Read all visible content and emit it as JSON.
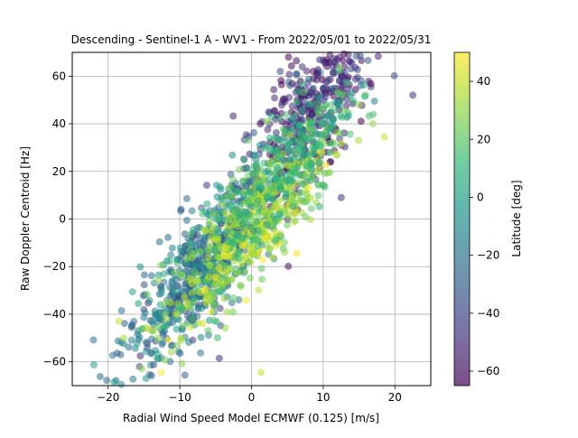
{
  "chart_data": {
    "type": "scatter",
    "title": "Descending - Sentinel-1 A - WV1 - From 2022/05/01 to 2022/05/31",
    "xlabel": "Radial Wind Speed Model ECMWF (0.125) [m/s]",
    "ylabel": "Raw Doppler Centroid [Hz]",
    "xlim": [
      -25,
      25
    ],
    "ylim": [
      -70,
      70
    ],
    "xticks": [
      -20,
      -10,
      0,
      10,
      20
    ],
    "yticks": [
      -60,
      -40,
      -20,
      0,
      20,
      40,
      60
    ],
    "grid": true,
    "point_alpha": 0.55,
    "colormap": "viridis",
    "colorbar": {
      "label": "Latitude [deg]",
      "range": [
        -65,
        50
      ],
      "ticks": [
        -60,
        -40,
        -20,
        0,
        20,
        40
      ],
      "gradient": [
        "#440154",
        "#482878",
        "#3e4989",
        "#31688e",
        "#26828e",
        "#1f9e89",
        "#35b779",
        "#6ece58",
        "#b5de2b",
        "#fde725"
      ]
    },
    "point_groups": [
      {
        "lat_center": -50,
        "lat_spread": 12,
        "count": 420,
        "x_center": 8,
        "x_spread": 5,
        "slope": 3.2,
        "intercept": 20,
        "noise": 14
      },
      {
        "lat_center": -20,
        "lat_spread": 12,
        "count": 600,
        "x_center": -7,
        "x_spread": 5,
        "slope": 3.0,
        "intercept": 0,
        "noise": 12
      },
      {
        "lat_center": 30,
        "lat_spread": 12,
        "count": 520,
        "x_center": 0,
        "x_spread": 6,
        "slope": 3.0,
        "intercept": -5,
        "noise": 11
      },
      {
        "lat_center": 10,
        "lat_spread": 10,
        "count": 260,
        "x_center": 5,
        "x_spread": 5,
        "slope": 3.0,
        "intercept": 10,
        "noise": 10
      }
    ],
    "highlight_points": [
      [
        22.5,
        52
      ],
      [
        -18.5,
        -43
      ],
      [
        -15.5,
        -57.5
      ],
      [
        1.3,
        -64.5
      ],
      [
        -4.5,
        -58.5
      ],
      [
        18.5,
        34.5
      ],
      [
        12.5,
        9
      ]
    ]
  }
}
